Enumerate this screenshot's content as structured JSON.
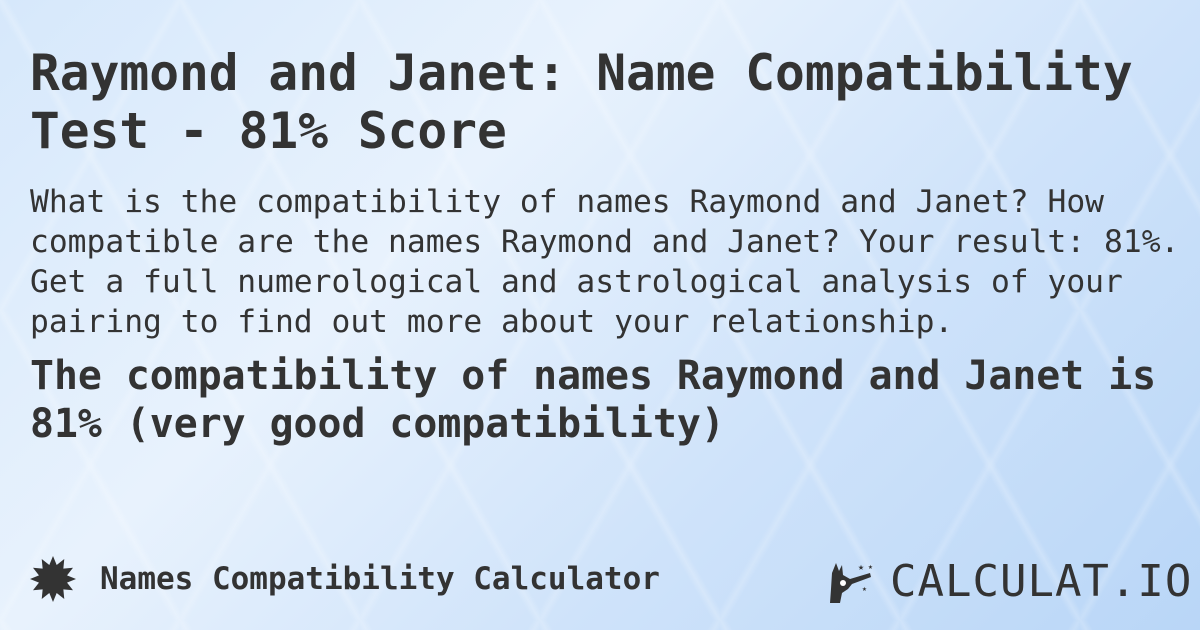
{
  "title": "Raymond and Janet: Name Compatibility Test - 81% Score",
  "description": "What is the compatibility of names Raymond and Janet? How compatible are the names Raymond and Janet? Your result: 81%. Get a full numerological and astrological analysis of your pairing to find out more about your relationship.",
  "result": "The compatibility of names Raymond and Janet is 81% (very good compatibility)",
  "footer": {
    "calculator_name": "Names Compatibility Calculator",
    "icon": "badge-star-icon"
  },
  "logo": {
    "text": "CALCULAT.IO",
    "icon": "magic-hand-icon"
  },
  "colors": {
    "text": "#333333",
    "background": "#d6e8fb"
  }
}
